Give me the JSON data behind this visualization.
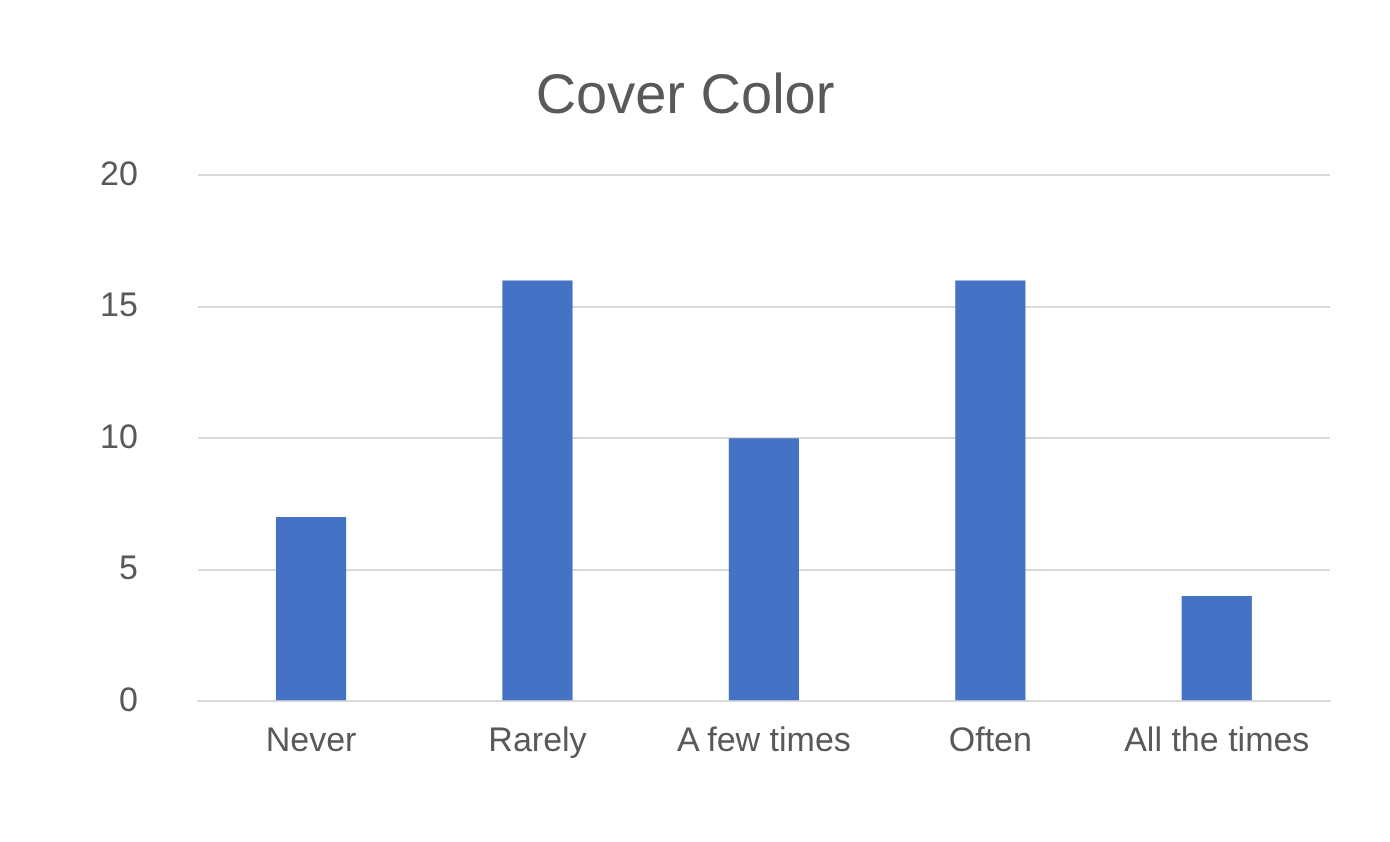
{
  "chart_data": {
    "type": "bar",
    "title": "Cover Color",
    "categories": [
      "Never",
      "Rarely",
      "A few times",
      "Often",
      "All the times"
    ],
    "values": [
      7,
      16,
      10,
      16,
      4
    ],
    "color": "#4472c4",
    "ylim": [
      0,
      20
    ],
    "yticks": [
      0,
      5,
      10,
      15,
      20
    ],
    "grid": "y"
  }
}
